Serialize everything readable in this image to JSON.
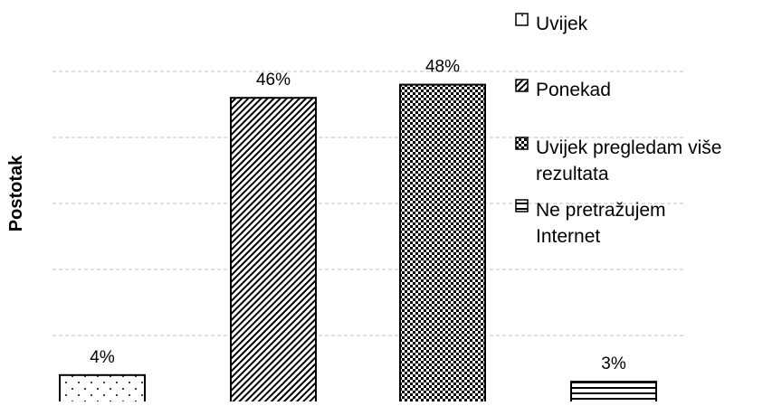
{
  "chart_data": {
    "type": "bar",
    "ylabel": "Postotak",
    "xlabel": "",
    "title": "",
    "ylim": [
      0,
      55
    ],
    "grid": "horizontal dashed",
    "legend_position": "right",
    "categories": [
      "Uvijek",
      "Ponekad",
      "Uvijek pregledam više rezultata",
      "Ne pretražujem Internet"
    ],
    "values": [
      4,
      46,
      48,
      3
    ],
    "data_labels": [
      "4%",
      "46%",
      "48%",
      "3%"
    ],
    "patterns": [
      "dots",
      "diagonal-stripes",
      "checker",
      "horizontal-stripes"
    ],
    "legend": [
      {
        "lines": [
          "Uvijek"
        ]
      },
      {
        "lines": [
          "Ponekad"
        ]
      },
      {
        "lines": [
          "Uvijek pregledam više",
          "rezultata"
        ]
      },
      {
        "lines": [
          "Ne pretražujem",
          "Internet"
        ]
      }
    ]
  }
}
